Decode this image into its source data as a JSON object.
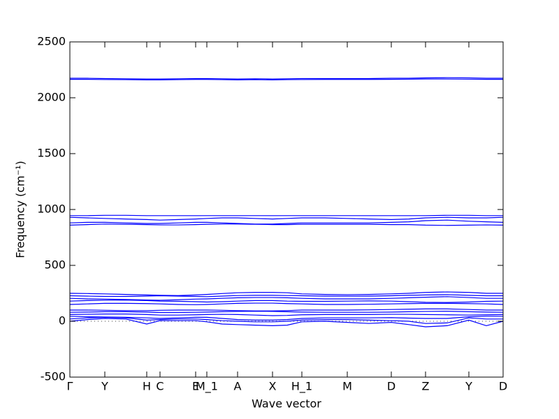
{
  "chart_data": {
    "type": "line",
    "xlabel": "Wave vector",
    "ylabel": "Frequency (cm⁻¹)",
    "color": "#0000ff",
    "x": [
      0,
      25,
      50,
      80,
      110,
      129,
      155,
      180,
      196,
      218,
      240,
      265,
      290,
      311,
      332,
      365,
      397,
      428,
      460,
      485,
      509,
      540,
      571,
      596,
      620
    ],
    "xlim": [
      0,
      620
    ],
    "xticks": [
      {
        "value": 0,
        "label": "Γ"
      },
      {
        "value": 50,
        "label": "Y"
      },
      {
        "value": 110,
        "label": "H"
      },
      {
        "value": 129,
        "label": "C"
      },
      {
        "value": 180,
        "label": "E"
      },
      {
        "value": 196,
        "label": "M_1"
      },
      {
        "value": 240,
        "label": "A"
      },
      {
        "value": 290,
        "label": "X"
      },
      {
        "value": 332,
        "label": "H_1"
      },
      {
        "value": 397,
        "label": "M"
      },
      {
        "value": 460,
        "label": "D"
      },
      {
        "value": 509,
        "label": "Z"
      },
      {
        "value": 571,
        "label": "Y"
      },
      {
        "value": 620,
        "label": "D"
      }
    ],
    "ylim": [
      -500,
      2500
    ],
    "yticks": [
      -500,
      0,
      500,
      1000,
      1500,
      2000,
      2500
    ],
    "series": [
      {
        "values": [
          2175,
          2175,
          2172,
          2170,
          2168,
          2168,
          2170,
          2172,
          2172,
          2170,
          2168,
          2170,
          2168,
          2170,
          2172,
          2172,
          2172,
          2172,
          2175,
          2175,
          2178,
          2180,
          2178,
          2175,
          2175
        ]
      },
      {
        "values": [
          2165,
          2165,
          2163,
          2162,
          2160,
          2160,
          2162,
          2164,
          2164,
          2162,
          2160,
          2162,
          2160,
          2162,
          2163,
          2164,
          2164,
          2164,
          2165,
          2166,
          2168,
          2168,
          2166,
          2165,
          2165
        ]
      },
      {
        "values": [
          945,
          945,
          948,
          948,
          945,
          945,
          945,
          945,
          945,
          945,
          945,
          945,
          945,
          945,
          945,
          945,
          945,
          945,
          945,
          945,
          945,
          948,
          948,
          945,
          945
        ]
      },
      {
        "values": [
          930,
          925,
          920,
          915,
          910,
          905,
          910,
          915,
          920,
          925,
          925,
          920,
          915,
          920,
          925,
          925,
          920,
          915,
          910,
          915,
          925,
          930,
          925,
          925,
          930
        ]
      },
      {
        "values": [
          880,
          885,
          885,
          880,
          875,
          875,
          880,
          885,
          885,
          880,
          875,
          870,
          870,
          875,
          880,
          880,
          880,
          880,
          885,
          890,
          900,
          905,
          895,
          890,
          885
        ]
      },
      {
        "values": [
          860,
          865,
          870,
          868,
          865,
          862,
          862,
          865,
          868,
          870,
          870,
          868,
          865,
          865,
          868,
          868,
          868,
          868,
          865,
          865,
          860,
          858,
          860,
          862,
          860
        ]
      },
      {
        "values": [
          250,
          248,
          245,
          240,
          235,
          232,
          230,
          235,
          240,
          248,
          255,
          258,
          258,
          255,
          245,
          240,
          238,
          240,
          245,
          250,
          258,
          262,
          258,
          250,
          250
        ]
      },
      {
        "values": [
          228,
          225,
          222,
          222,
          225,
          228,
          225,
          222,
          220,
          225,
          230,
          232,
          232,
          230,
          228,
          225,
          225,
          225,
          228,
          232,
          235,
          238,
          232,
          228,
          228
        ]
      },
      {
        "values": [
          205,
          200,
          198,
          195,
          190,
          188,
          192,
          198,
          200,
          205,
          210,
          212,
          212,
          210,
          205,
          200,
          200,
          200,
          205,
          210,
          215,
          220,
          212,
          205,
          205
        ]
      },
      {
        "values": [
          180,
          185,
          188,
          190,
          185,
          180,
          178,
          175,
          172,
          175,
          180,
          185,
          185,
          180,
          178,
          178,
          180,
          182,
          180,
          175,
          170,
          168,
          172,
          178,
          180
        ]
      },
      {
        "values": [
          150,
          155,
          160,
          160,
          158,
          155,
          150,
          148,
          150,
          155,
          160,
          162,
          162,
          158,
          155,
          150,
          150,
          152,
          155,
          158,
          160,
          160,
          158,
          155,
          150
        ]
      },
      {
        "values": [
          100,
          100,
          98,
          95,
          95,
          98,
          100,
          100,
          100,
          98,
          95,
          92,
          92,
          95,
          100,
          100,
          100,
          102,
          105,
          108,
          110,
          110,
          105,
          100,
          100
        ]
      },
      {
        "values": [
          80,
          82,
          85,
          85,
          82,
          78,
          78,
          80,
          82,
          85,
          88,
          90,
          88,
          85,
          82,
          80,
          80,
          80,
          82,
          85,
          88,
          90,
          85,
          82,
          80
        ]
      },
      {
        "values": [
          60,
          62,
          65,
          65,
          60,
          55,
          55,
          58,
          60,
          62,
          60,
          55,
          50,
          52,
          58,
          60,
          60,
          60,
          62,
          62,
          60,
          58,
          55,
          58,
          60
        ]
      },
      {
        "values": [
          45,
          40,
          38,
          35,
          30,
          25,
          30,
          35,
          35,
          25,
          15,
          10,
          10,
          15,
          25,
          30,
          30,
          30,
          32,
          28,
          25,
          25,
          40,
          45,
          45
        ]
      },
      {
        "values": [
          0,
          15,
          25,
          20,
          -25,
          5,
          5,
          5,
          -5,
          -25,
          -30,
          -35,
          -40,
          -35,
          -5,
          0,
          -10,
          -20,
          -10,
          -30,
          -50,
          -40,
          10,
          -40,
          0
        ]
      },
      {
        "values": [
          20,
          30,
          35,
          30,
          10,
          15,
          20,
          20,
          15,
          5,
          0,
          -5,
          -5,
          0,
          10,
          15,
          15,
          10,
          5,
          0,
          -20,
          -15,
          30,
          20,
          20
        ]
      }
    ]
  }
}
